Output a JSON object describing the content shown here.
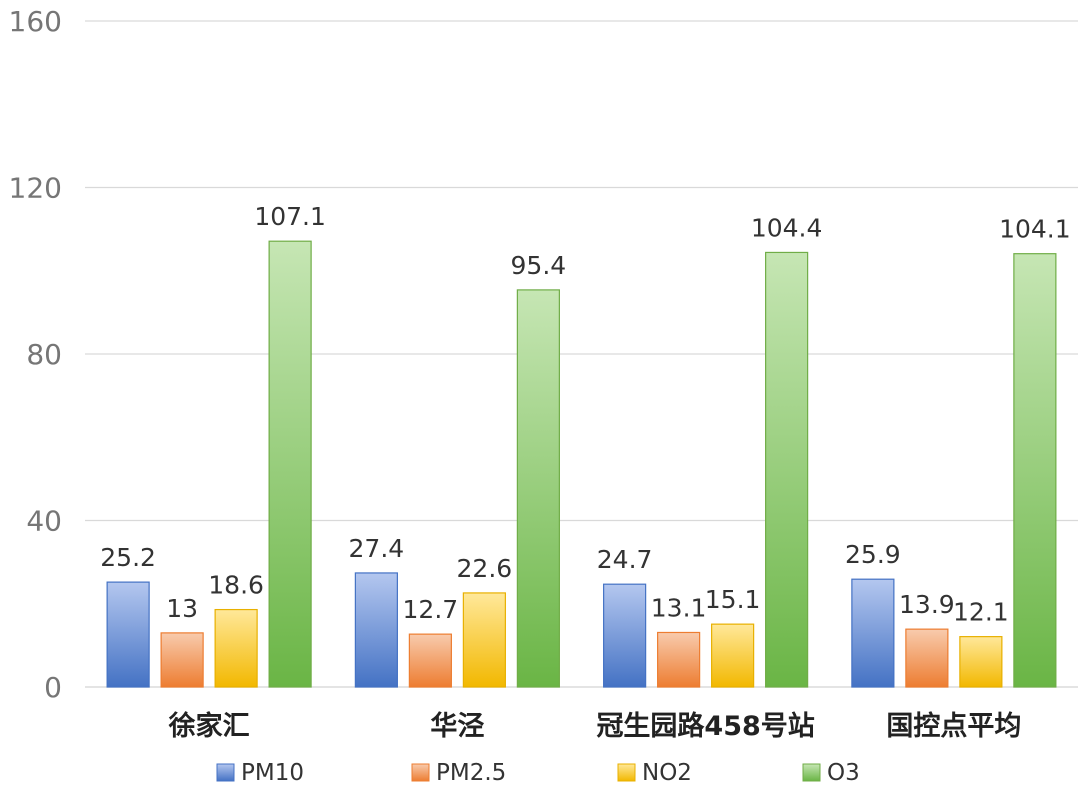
{
  "chart_data": {
    "type": "bar",
    "title": "",
    "xlabel": "",
    "ylabel": "",
    "ylim": [
      0,
      160
    ],
    "yticks": [
      0,
      40,
      80,
      120,
      160
    ],
    "grid": true,
    "legend": "bottom",
    "categories": [
      "徐家汇",
      "华泾",
      "冠生园路458号站",
      "国控点平均"
    ],
    "series": [
      {
        "name": "PM10",
        "values": [
          25.2,
          27.4,
          24.7,
          25.9
        ],
        "labels": [
          "25.2",
          "27.4",
          "24.7",
          "25.9"
        ],
        "color_top": "#b4c7ef",
        "color_bottom": "#4472c4",
        "border": "#4472c4"
      },
      {
        "name": "PM2.5",
        "values": [
          13,
          12.7,
          13.1,
          13.9
        ],
        "labels": [
          "13",
          "12.7",
          "13.1",
          "13.9"
        ],
        "color_top": "#f8cbad",
        "color_bottom": "#ed7d31",
        "border": "#ed7d31"
      },
      {
        "name": "NO2",
        "values": [
          18.6,
          22.6,
          15.1,
          12.1
        ],
        "labels": [
          "18.6",
          "22.6",
          "15.1",
          "12.1"
        ],
        "color_top": "#ffe89a",
        "color_bottom": "#f2b800",
        "border": "#e8b000"
      },
      {
        "name": "O3",
        "values": [
          107.1,
          95.4,
          104.4,
          104.1
        ],
        "labels": [
          "107.1",
          "95.4",
          "104.4",
          "104.1"
        ],
        "color_top": "#c6e6b4",
        "color_bottom": "#6ab545",
        "border": "#70ad47"
      }
    ]
  }
}
